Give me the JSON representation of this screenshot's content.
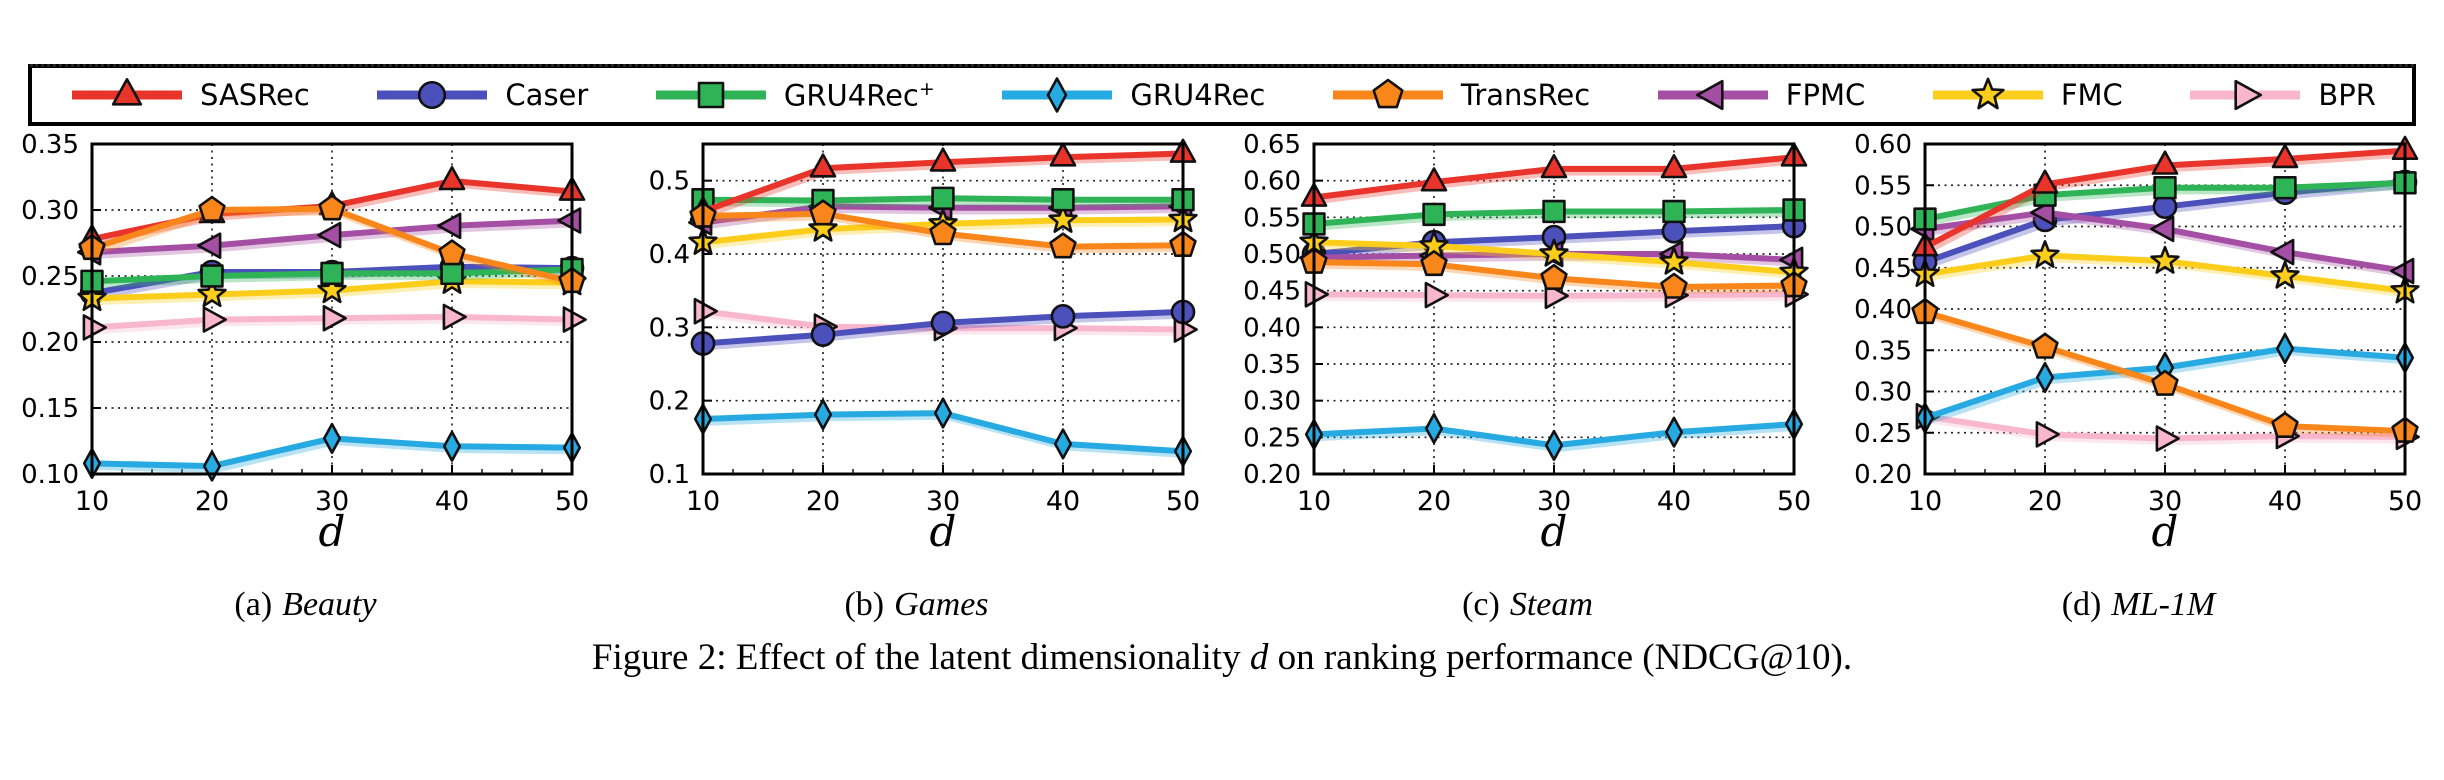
{
  "colors": {
    "axis": "#000000",
    "grid": "#000000",
    "marker_edge": "#111111"
  },
  "legend": {
    "position": "top",
    "items": [
      {
        "label": "SASRec",
        "sup": "",
        "marker": "triangle-up",
        "color": "#e9342b"
      },
      {
        "label": "Caser",
        "sup": "",
        "marker": "circle",
        "color": "#4c50bb"
      },
      {
        "label": "GRU4Rec",
        "sup": "+",
        "marker": "square",
        "color": "#2eb456"
      },
      {
        "label": "GRU4Rec",
        "sup": "",
        "marker": "diamond",
        "color": "#27a9e1"
      },
      {
        "label": "TransRec",
        "sup": "",
        "marker": "pentagon",
        "color": "#f8861b"
      },
      {
        "label": "FPMC",
        "sup": "",
        "marker": "triangle-left",
        "color": "#a44fa4"
      },
      {
        "label": "FMC",
        "sup": "",
        "marker": "star",
        "color": "#fcce1b"
      },
      {
        "label": "BPR",
        "sup": "",
        "marker": "triangle-right",
        "color": "#f9b7cd"
      }
    ]
  },
  "chart_data": [
    {
      "type": "line",
      "panel_label": "(a)",
      "dataset": "Beauty",
      "xlabel": "d",
      "x": [
        10,
        20,
        30,
        40,
        50
      ],
      "xticks": [
        10,
        20,
        30,
        40,
        50
      ],
      "ylim": [
        0.1,
        0.35
      ],
      "yticks": [
        0.1,
        0.15,
        0.2,
        0.25,
        0.3,
        0.35
      ],
      "ytick_labels": [
        "0.10",
        "0.15",
        "0.20",
        "0.25",
        "0.30",
        "0.35"
      ],
      "grid": true,
      "series": [
        {
          "name": "SASRec",
          "values": [
            0.278,
            0.297,
            0.303,
            0.322,
            0.314
          ]
        },
        {
          "name": "Caser",
          "values": [
            0.237,
            0.253,
            0.253,
            0.257,
            0.256
          ]
        },
        {
          "name": "GRU4Rec+",
          "values": [
            0.246,
            0.25,
            0.252,
            0.252,
            0.255
          ]
        },
        {
          "name": "GRU4Rec",
          "values": [
            0.108,
            0.106,
            0.127,
            0.121,
            0.12
          ]
        },
        {
          "name": "TransRec",
          "values": [
            0.271,
            0.3,
            0.301,
            0.267,
            0.246
          ]
        },
        {
          "name": "FPMC",
          "values": [
            0.268,
            0.273,
            0.281,
            0.288,
            0.292
          ]
        },
        {
          "name": "FMC",
          "values": [
            0.233,
            0.236,
            0.239,
            0.246,
            0.245
          ]
        },
        {
          "name": "BPR",
          "values": [
            0.211,
            0.217,
            0.218,
            0.219,
            0.217
          ]
        }
      ]
    },
    {
      "type": "line",
      "panel_label": "(b)",
      "dataset": "Games",
      "xlabel": "d",
      "x": [
        10,
        20,
        30,
        40,
        50
      ],
      "xticks": [
        10,
        20,
        30,
        40,
        50
      ],
      "ylim": [
        0.1,
        0.55
      ],
      "yticks": [
        0.1,
        0.2,
        0.3,
        0.4,
        0.5
      ],
      "ytick_labels": [
        "0.1",
        "0.2",
        "0.3",
        "0.4",
        "0.5"
      ],
      "grid": true,
      "series": [
        {
          "name": "SASRec",
          "values": [
            0.458,
            0.517,
            0.525,
            0.532,
            0.537
          ]
        },
        {
          "name": "Caser",
          "values": [
            0.278,
            0.29,
            0.306,
            0.315,
            0.321
          ]
        },
        {
          "name": "GRU4Rec+",
          "values": [
            0.474,
            0.473,
            0.476,
            0.474,
            0.474
          ]
        },
        {
          "name": "GRU4Rec",
          "values": [
            0.175,
            0.181,
            0.183,
            0.141,
            0.131
          ]
        },
        {
          "name": "TransRec",
          "values": [
            0.452,
            0.455,
            0.428,
            0.41,
            0.412
          ]
        },
        {
          "name": "FPMC",
          "values": [
            0.443,
            0.465,
            0.463,
            0.463,
            0.465
          ]
        },
        {
          "name": "FMC",
          "values": [
            0.416,
            0.434,
            0.441,
            0.446,
            0.447
          ]
        },
        {
          "name": "BPR",
          "values": [
            0.322,
            0.301,
            0.299,
            0.299,
            0.297
          ]
        }
      ]
    },
    {
      "type": "line",
      "panel_label": "(c)",
      "dataset": "Steam",
      "xlabel": "d",
      "x": [
        10,
        20,
        30,
        40,
        50
      ],
      "xticks": [
        10,
        20,
        30,
        40,
        50
      ],
      "ylim": [
        0.2,
        0.65
      ],
      "yticks": [
        0.2,
        0.25,
        0.3,
        0.35,
        0.4,
        0.45,
        0.5,
        0.55,
        0.6,
        0.65
      ],
      "ytick_labels": [
        "0.20",
        "0.25",
        "0.30",
        "0.35",
        "0.40",
        "0.45",
        "0.50",
        "0.55",
        "0.60",
        "0.65"
      ],
      "grid": true,
      "series": [
        {
          "name": "SASRec",
          "values": [
            0.577,
            0.598,
            0.616,
            0.616,
            0.632
          ]
        },
        {
          "name": "Caser",
          "values": [
            0.5,
            0.516,
            0.523,
            0.531,
            0.538
          ]
        },
        {
          "name": "GRU4Rec+",
          "values": [
            0.541,
            0.554,
            0.558,
            0.558,
            0.56
          ]
        },
        {
          "name": "GRU4Rec",
          "values": [
            0.254,
            0.262,
            0.239,
            0.257,
            0.268
          ]
        },
        {
          "name": "TransRec",
          "values": [
            0.489,
            0.486,
            0.467,
            0.455,
            0.457
          ]
        },
        {
          "name": "FPMC",
          "values": [
            0.495,
            0.498,
            0.5,
            0.5,
            0.492
          ]
        },
        {
          "name": "FMC",
          "values": [
            0.516,
            0.511,
            0.5,
            0.489,
            0.475
          ]
        },
        {
          "name": "BPR",
          "values": [
            0.445,
            0.444,
            0.443,
            0.444,
            0.445
          ]
        }
      ]
    },
    {
      "type": "line",
      "panel_label": "(d)",
      "dataset": "ML-1M",
      "xlabel": "d",
      "x": [
        10,
        20,
        30,
        40,
        50
      ],
      "xticks": [
        10,
        20,
        30,
        40,
        50
      ],
      "ylim": [
        0.2,
        0.6
      ],
      "yticks": [
        0.2,
        0.25,
        0.3,
        0.35,
        0.4,
        0.45,
        0.5,
        0.55,
        0.6
      ],
      "ytick_labels": [
        "0.20",
        "0.25",
        "0.30",
        "0.35",
        "0.40",
        "0.45",
        "0.50",
        "0.55",
        "0.60"
      ],
      "grid": true,
      "series": [
        {
          "name": "SASRec",
          "values": [
            0.475,
            0.551,
            0.574,
            0.582,
            0.592
          ]
        },
        {
          "name": "Caser",
          "values": [
            0.457,
            0.508,
            0.524,
            0.541,
            0.554
          ]
        },
        {
          "name": "GRU4Rec+",
          "values": [
            0.509,
            0.538,
            0.547,
            0.547,
            0.553
          ]
        },
        {
          "name": "GRU4Rec",
          "values": [
            0.268,
            0.317,
            0.329,
            0.352,
            0.341
          ]
        },
        {
          "name": "TransRec",
          "values": [
            0.396,
            0.354,
            0.309,
            0.258,
            0.252
          ]
        },
        {
          "name": "FPMC",
          "values": [
            0.497,
            0.517,
            0.497,
            0.469,
            0.446
          ]
        },
        {
          "name": "FMC",
          "values": [
            0.442,
            0.465,
            0.458,
            0.44,
            0.422
          ]
        },
        {
          "name": "BPR",
          "values": [
            0.27,
            0.248,
            0.243,
            0.246,
            0.245
          ]
        }
      ]
    }
  ],
  "figure_caption": {
    "prefix": "Figure 2: Effect of the latent dimensionality ",
    "emph": "d",
    "suffix": " on ranking performance (NDCG@10)."
  }
}
